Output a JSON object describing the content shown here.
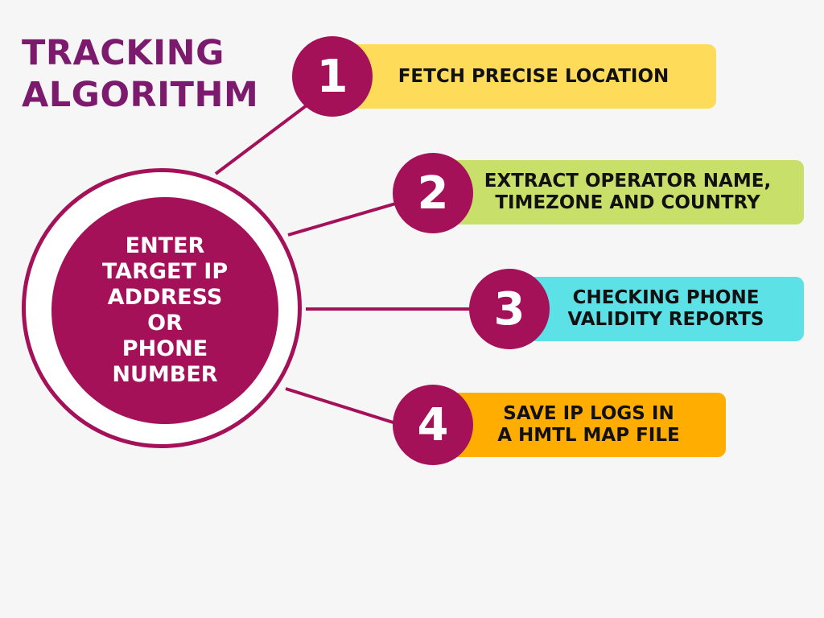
{
  "title": {
    "line1": "TRACKING",
    "line2": "ALGORITHM"
  },
  "hub": {
    "text": "ENTER\nTARGET IP\nADDRESS\nOR\nPHONE\nNUMBER"
  },
  "steps": [
    {
      "number": "1",
      "text": "FETCH PRECISE LOCATION",
      "color": "#fedc5a"
    },
    {
      "number": "2",
      "text": "EXTRACT OPERATOR NAME,\nTIMEZONE AND COUNTRY",
      "color": "#c8e06a"
    },
    {
      "number": "3",
      "text": "CHECKING PHONE\nVALIDITY REPORTS",
      "color": "#5ce1e6"
    },
    {
      "number": "4",
      "text": "SAVE IP LOGS IN\nA HMTL MAP FILE",
      "color": "#ffad01"
    }
  ],
  "colors": {
    "accent": "#a41158",
    "title": "#7c1a6e",
    "background": "#f7f6f6"
  }
}
